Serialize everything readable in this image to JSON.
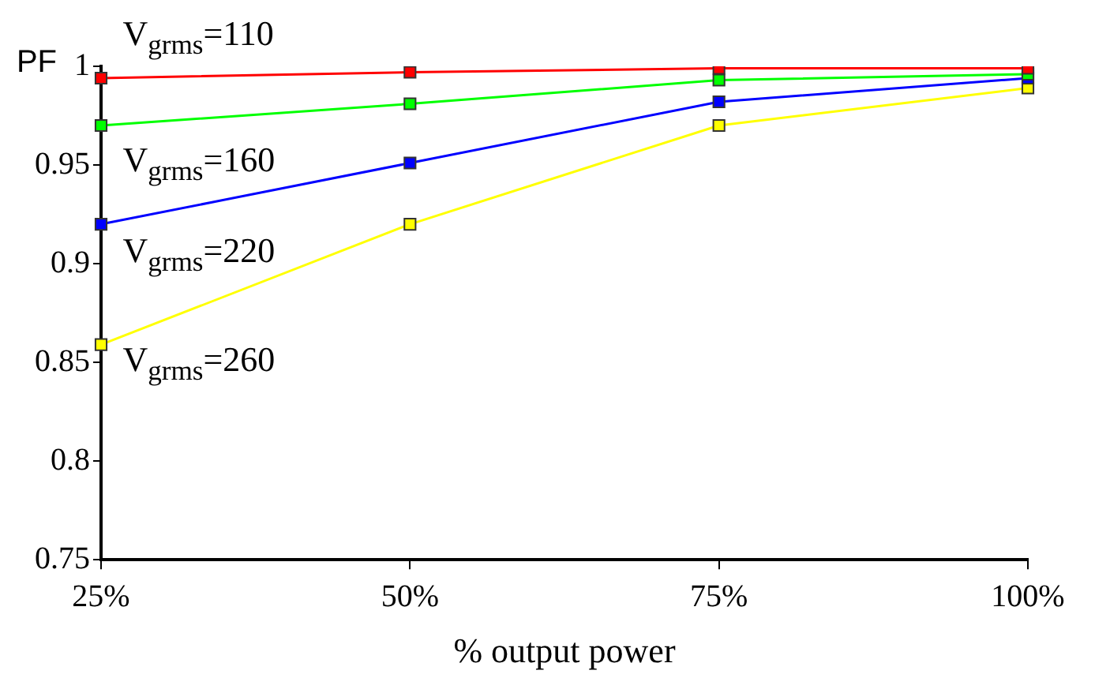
{
  "chart_data": {
    "type": "line",
    "xlabel": "% output power",
    "ylabel": "PF",
    "categories": [
      "25%",
      "50%",
      "75%",
      "100%"
    ],
    "series": [
      {
        "name": "V$_{grms}$=110",
        "color": "#ff0000",
        "values": [
          0.994,
          0.997,
          0.999,
          0.999
        ]
      },
      {
        "name": "V$_{grms}$=160",
        "color": "#00ff00",
        "values": [
          0.97,
          0.981,
          0.993,
          0.996
        ]
      },
      {
        "name": "V$_{grms}$=220",
        "color": "#0000ff",
        "values": [
          0.92,
          0.951,
          0.982,
          0.994
        ]
      },
      {
        "name": "V$_{grms}$=260",
        "color": "#ffff00",
        "values": [
          0.859,
          0.92,
          0.97,
          0.989
        ]
      }
    ],
    "ylim": [
      0.75,
      1
    ],
    "yticks": [
      0.75,
      0.8,
      0.85,
      0.9,
      0.95,
      1
    ],
    "grid": false,
    "legend": false,
    "marker": "square",
    "line_style": "solid"
  }
}
